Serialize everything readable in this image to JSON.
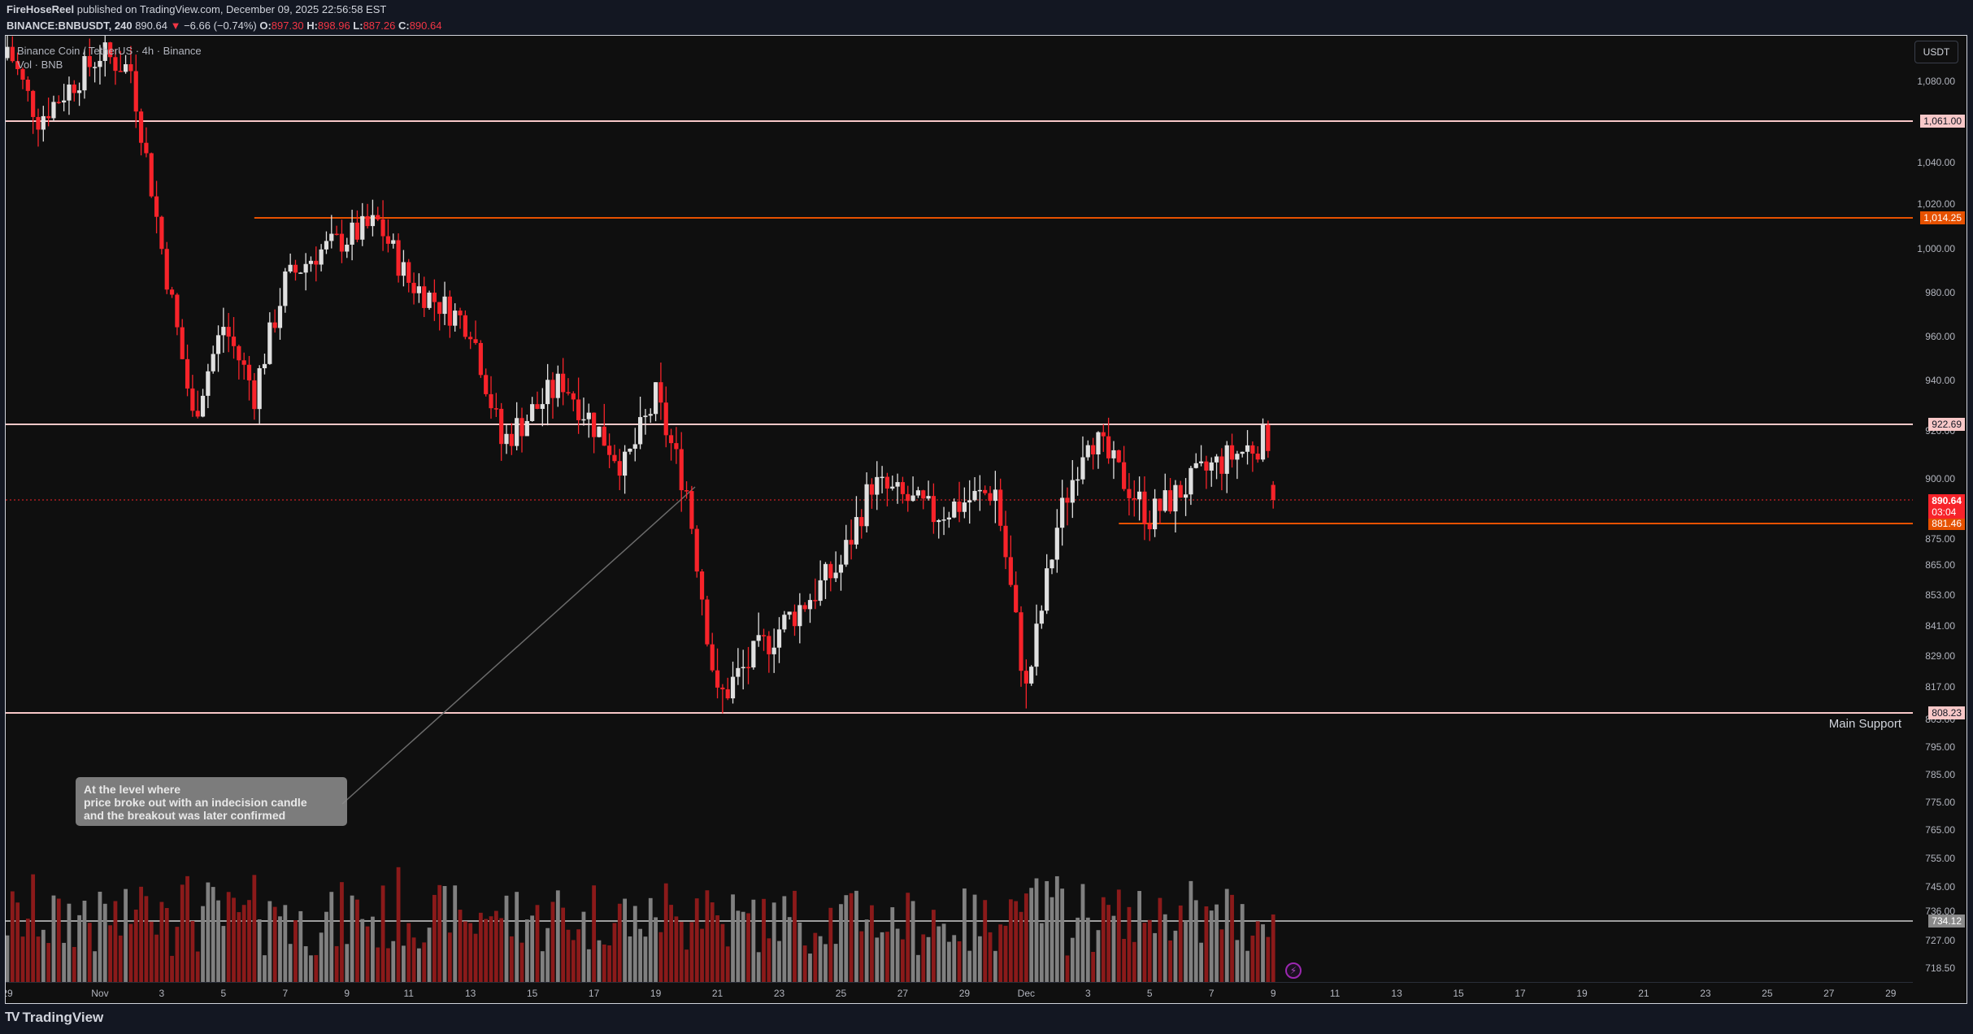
{
  "header": {
    "author": "FireHoseReel",
    "published_text": "published on TradingView.com, December 09, 2025 22:56:58 EST",
    "symbol": "BINANCE:BNBUSDT, 240",
    "last": "890.64",
    "change_arrow": "▼",
    "change": "−6.66 (−0.74%)",
    "o_label": "O:",
    "o": "897.30",
    "h_label": "H:",
    "h": "898.96",
    "l_label": "L:",
    "l": "887.26",
    "c_label": "C:",
    "c": "890.64"
  },
  "legend": {
    "title": "Binance Coin / TetherUS · 4h · Binance",
    "volume": "Vol · BNB"
  },
  "currency_button": "USDT",
  "annotation": {
    "lines": [
      "At the level where",
      "price broke out with an indecision candle",
      "and the breakout was later confirmed"
    ]
  },
  "support_label": "Main Support",
  "footer": {
    "logo": "TV",
    "brand": "TradingView"
  },
  "colors": {
    "bg": "#0f0f0f",
    "up": "#e0e0e0",
    "down": "#f7232a",
    "vol_up": "#808080",
    "vol_down": "#8b1a1a",
    "level_pink": "#f8c8c8",
    "level_orange": "#e65100",
    "last_price": "#f7232a"
  },
  "chart_data": {
    "type": "candlestick",
    "title": "Binance Coin / TetherUS · 4h · Binance",
    "symbol": "BINANCE:BNBUSDT",
    "interval": "4h",
    "price_axis_ticks": [
      "1,080.00",
      "1,040.00",
      "1,020.00",
      "1,000.00",
      "980.00",
      "960.00",
      "940.00",
      "920.00",
      "900.00",
      "875.00",
      "865.00",
      "853.00",
      "841.00",
      "829.00",
      "817.00",
      "805.00",
      "795.00",
      "785.00",
      "775.00",
      "765.00",
      "755.00",
      "745.00",
      "736.00",
      "727.00",
      "718.50"
    ],
    "time_axis_ticks": [
      "29",
      "Nov",
      "3",
      "5",
      "7",
      "9",
      "11",
      "13",
      "15",
      "17",
      "19",
      "21",
      "23",
      "25",
      "27",
      "29",
      "Dec",
      "3",
      "5",
      "7",
      "9",
      "11",
      "13",
      "15",
      "17",
      "19",
      "21",
      "23",
      "25",
      "27",
      "29"
    ],
    "horizontal_levels": [
      {
        "price": 1061.0,
        "label": "1,061.00",
        "color": "#f8c8c8",
        "start": "left"
      },
      {
        "price": 1014.25,
        "label": "1,014.25",
        "color": "#e65100",
        "start": "Nov 6"
      },
      {
        "price": 922.69,
        "label": "922.69",
        "color": "#f8c8c8",
        "start": "left"
      },
      {
        "price": 881.46,
        "label": "881.46",
        "color": "#e65100",
        "start": "Dec 4"
      },
      {
        "price": 808.23,
        "label": "808.23",
        "color": "#f8c8c8",
        "start": "left",
        "note": "Main Support"
      },
      {
        "price": 734.12,
        "label": "734.12",
        "color": "#9e9e9e",
        "start": "left"
      }
    ],
    "last_price": {
      "value": 890.64,
      "label": "890.64",
      "countdown": "03:04"
    },
    "ohlc_last": {
      "open": 897.3,
      "high": 898.96,
      "low": 887.26,
      "close": 890.64,
      "change": -6.66,
      "change_pct": -0.74
    },
    "path_keypoints": [
      {
        "date": "Oct 29",
        "price": 1095
      },
      {
        "date": "Oct 30",
        "price": 1062
      },
      {
        "date": "Nov 1",
        "price": 1092
      },
      {
        "date": "Nov 2",
        "price": 1085
      },
      {
        "date": "Nov 3",
        "price": 1000
      },
      {
        "date": "Nov 4",
        "price": 925
      },
      {
        "date": "Nov 5",
        "price": 965
      },
      {
        "date": "Nov 6",
        "price": 935
      },
      {
        "date": "Nov 7",
        "price": 985
      },
      {
        "date": "Nov 8",
        "price": 998
      },
      {
        "date": "Nov 10",
        "price": 1012
      },
      {
        "date": "Nov 11",
        "price": 985
      },
      {
        "date": "Nov 13",
        "price": 965
      },
      {
        "date": "Nov 14",
        "price": 915
      },
      {
        "date": "Nov 16",
        "price": 940
      },
      {
        "date": "Nov 18",
        "price": 905
      },
      {
        "date": "Nov 19",
        "price": 933
      },
      {
        "date": "Nov 20",
        "price": 895
      },
      {
        "date": "Nov 21",
        "price": 812
      },
      {
        "date": "Nov 23",
        "price": 840
      },
      {
        "date": "Nov 25",
        "price": 865
      },
      {
        "date": "Nov 26",
        "price": 898
      },
      {
        "date": "Nov 28",
        "price": 885
      },
      {
        "date": "Nov 30",
        "price": 895
      },
      {
        "date": "Dec 1",
        "price": 815
      },
      {
        "date": "Dec 2",
        "price": 880
      },
      {
        "date": "Dec 3",
        "price": 920
      },
      {
        "date": "Dec 5",
        "price": 884
      },
      {
        "date": "Dec 7",
        "price": 905
      },
      {
        "date": "Dec 9",
        "price": 918
      },
      {
        "date": "Dec 9 (last)",
        "price": 890.64
      }
    ],
    "grid": false,
    "legend_position": "top-left"
  }
}
